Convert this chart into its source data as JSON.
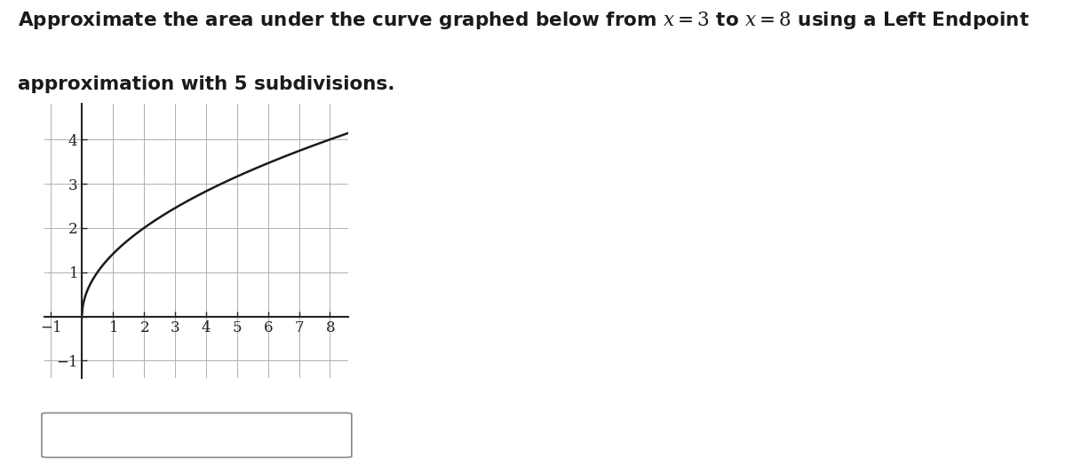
{
  "title_line1": "Approximate the area under the curve graphed below from $x = 3$ to $x = 8$ using a Left Endpoint",
  "title_line2": "approximation with 5 subdivisions.",
  "xlim": [
    -1.2,
    8.6
  ],
  "ylim": [
    -1.4,
    4.8
  ],
  "curve_color": "#1a1a1a",
  "curve_linewidth": 1.8,
  "grid_color": "#b0b0b0",
  "axis_color": "#222222",
  "background_color": "#ffffff",
  "figure_width": 12.0,
  "figure_height": 5.33,
  "func": "sqrt_2x",
  "title_fontsize": 15.5,
  "tick_fontsize": 12
}
